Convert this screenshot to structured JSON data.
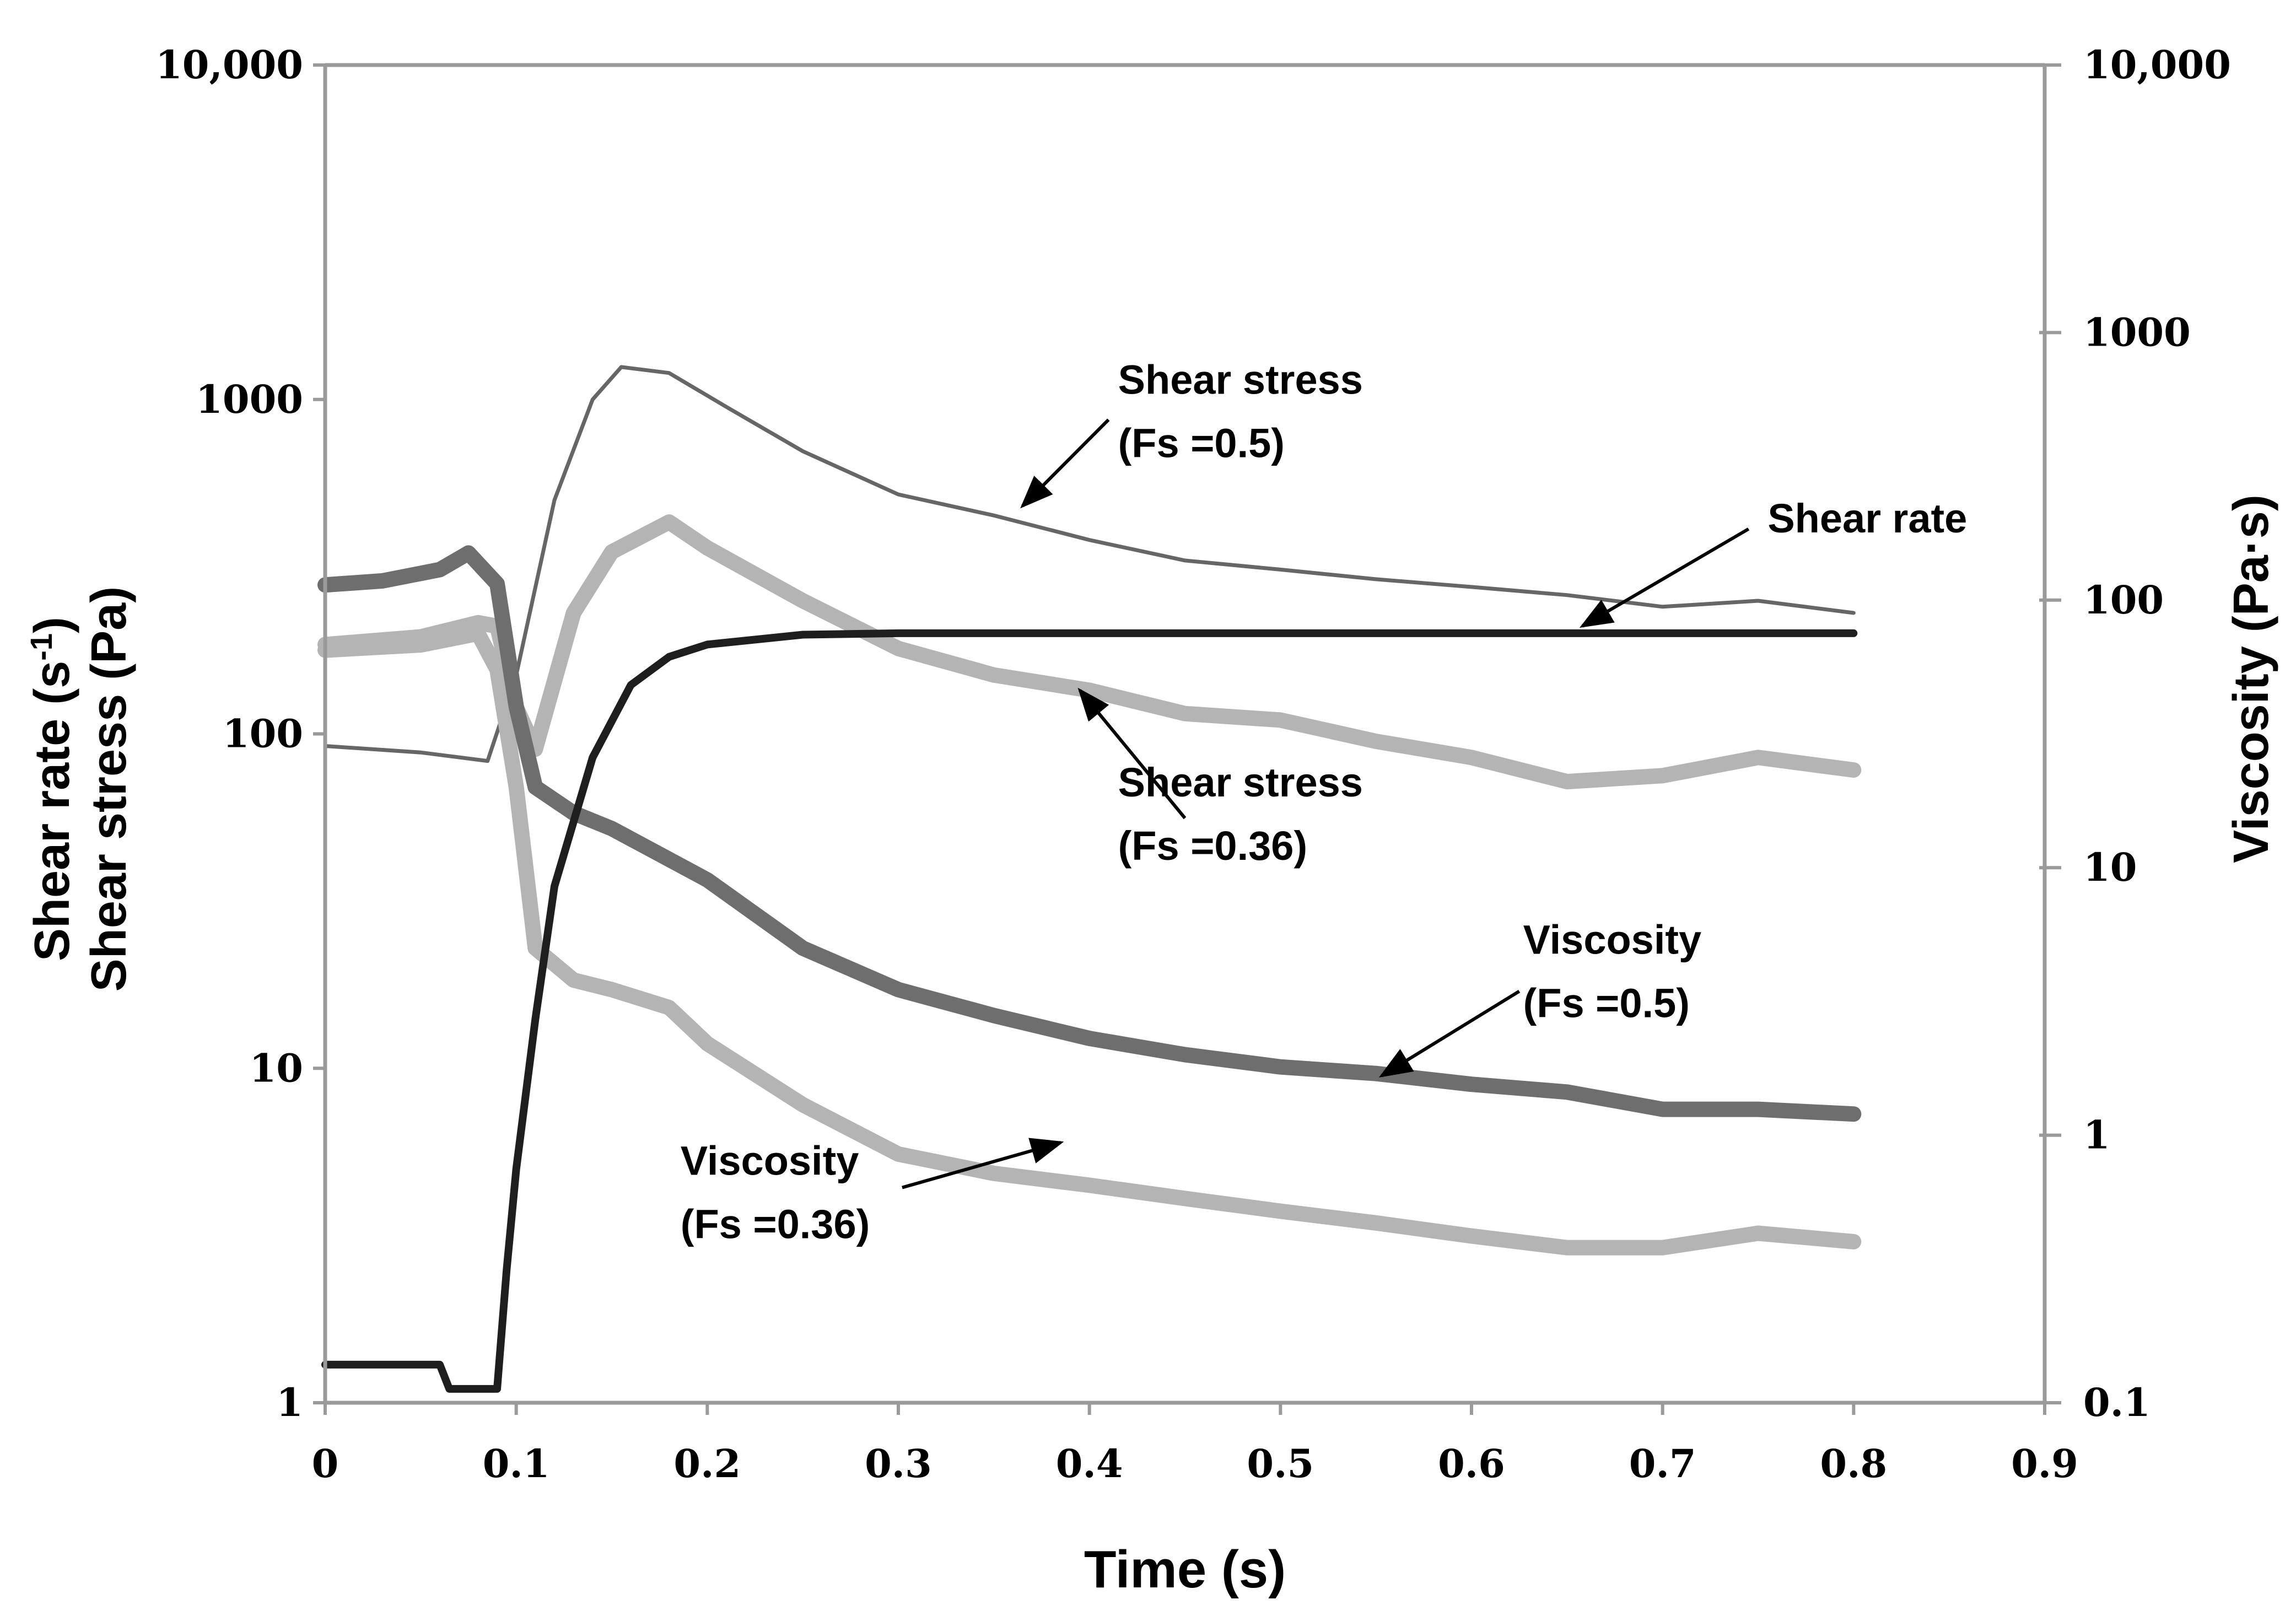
{
  "chart_data": {
    "type": "line",
    "xlabel": "Time (s)",
    "ylabel_left": [
      "Shear rate (s",
      "-1",
      ")",
      "Shear stress (Pa)"
    ],
    "ylabel_right": "Viscosity (Pa·s)",
    "x_range": [
      0,
      0.9
    ],
    "x_ticks": [
      "0",
      "0.1",
      "0.2",
      "0.3",
      "0.4",
      "0.5",
      "0.6",
      "0.7",
      "0.8",
      "0.9"
    ],
    "y_left": {
      "scale": "log",
      "range": [
        1,
        10000
      ],
      "ticks": [
        "1",
        "10",
        "100",
        "1000",
        "10,000"
      ]
    },
    "y_right": {
      "scale": "log",
      "range": [
        0.1,
        10000
      ],
      "ticks": [
        "0.1",
        "1",
        "10",
        "100",
        "1000",
        "10,000"
      ]
    },
    "series": [
      {
        "name": "Shear stress (Fs =0.5)",
        "axis": "left",
        "color": "#666666",
        "style": "thin",
        "x": [
          0,
          0.05,
          0.085,
          0.1,
          0.12,
          0.14,
          0.155,
          0.18,
          0.21,
          0.25,
          0.3,
          0.35,
          0.4,
          0.45,
          0.5,
          0.55,
          0.6,
          0.65,
          0.7,
          0.75,
          0.8
        ],
        "values": [
          92,
          88,
          83,
          150,
          500,
          1000,
          1250,
          1200,
          950,
          700,
          520,
          450,
          380,
          330,
          310,
          290,
          275,
          260,
          240,
          250,
          230
        ]
      },
      {
        "name": "Shear stress (Fs =0.36)",
        "axis": "left",
        "color": "#b4b4b4",
        "style": "thick",
        "x": [
          0,
          0.05,
          0.08,
          0.09,
          0.1,
          0.11,
          0.13,
          0.15,
          0.18,
          0.2,
          0.25,
          0.3,
          0.35,
          0.4,
          0.45,
          0.5,
          0.55,
          0.6,
          0.65,
          0.7,
          0.75,
          0.8
        ],
        "values": [
          185,
          195,
          215,
          210,
          120,
          90,
          230,
          350,
          430,
          360,
          250,
          180,
          150,
          135,
          115,
          110,
          95,
          85,
          72,
          75,
          85,
          78
        ]
      },
      {
        "name": "Shear rate",
        "axis": "left",
        "color": "#1e1e1e",
        "style": "medium",
        "x": [
          0,
          0.02,
          0.04,
          0.06,
          0.065,
          0.08,
          0.09,
          0.095,
          0.1,
          0.11,
          0.12,
          0.14,
          0.16,
          0.18,
          0.2,
          0.25,
          0.3,
          0.8
        ],
        "values": [
          1.3,
          1.3,
          1.3,
          1.3,
          1.1,
          1.1,
          1.1,
          2.5,
          5,
          14,
          35,
          85,
          140,
          170,
          185,
          198,
          200,
          200
        ]
      },
      {
        "name": "Viscosity (Fs =0.5)",
        "axis": "right",
        "color": "#6e6e6e",
        "style": "thick",
        "x": [
          0,
          0.03,
          0.06,
          0.075,
          0.09,
          0.1,
          0.11,
          0.13,
          0.15,
          0.2,
          0.25,
          0.3,
          0.35,
          0.4,
          0.45,
          0.5,
          0.55,
          0.6,
          0.65,
          0.7,
          0.75,
          0.8
        ],
        "values": [
          114,
          118,
          130,
          150,
          115,
          40,
          20,
          16,
          14,
          9,
          5,
          3.5,
          2.8,
          2.3,
          2,
          1.8,
          1.7,
          1.55,
          1.45,
          1.25,
          1.25,
          1.2
        ]
      },
      {
        "name": "Viscosity (Fs =0.36)",
        "axis": "right",
        "color": "#b4b4b4",
        "style": "thick",
        "x": [
          0,
          0.05,
          0.08,
          0.09,
          0.1,
          0.11,
          0.13,
          0.15,
          0.18,
          0.2,
          0.25,
          0.3,
          0.35,
          0.4,
          0.45,
          0.5,
          0.55,
          0.6,
          0.65,
          0.7,
          0.75,
          0.8
        ],
        "values": [
          65,
          68,
          75,
          55,
          20,
          5,
          3.8,
          3.5,
          3,
          2.2,
          1.3,
          0.85,
          0.72,
          0.65,
          0.58,
          0.52,
          0.47,
          0.42,
          0.38,
          0.38,
          0.43,
          0.4
        ]
      }
    ],
    "annotations": [
      {
        "lines": [
          "Shear stress",
          "(Fs =0.5)"
        ],
        "anchor": "start",
        "at": {
          "x": 0.415,
          "y": 1040
        },
        "arrow_from": {
          "x": 0.41,
          "y": 870
        },
        "arrow_to": {
          "x": 0.365,
          "y": 480
        }
      },
      {
        "lines": [
          "Shear rate"
        ],
        "anchor": "start",
        "at": {
          "x": 0.755,
          "y": 400
        },
        "arrow_from": {
          "x": 0.745,
          "y": 410
        },
        "arrow_to": {
          "x": 0.658,
          "y": 210
        }
      },
      {
        "lines": [
          "Shear stress",
          "(Fs =0.36)"
        ],
        "anchor": "start",
        "at": {
          "x": 0.415,
          "y": 65
        },
        "arrow_from": {
          "x": 0.45,
          "y": 56
        },
        "arrow_to": {
          "x": 0.395,
          "y": 135
        }
      },
      {
        "lines": [
          "Viscosity",
          "(Fs =0.5)"
        ],
        "anchor": "start",
        "at": {
          "x": 0.627,
          "y": 22
        },
        "arrow_from": {
          "x": 0.625,
          "y": 17
        },
        "arrow_to": {
          "x": 0.553,
          "y": 9.5
        }
      },
      {
        "lines": [
          "Viscosity",
          "(Fs =0.36)"
        ],
        "anchor": "start",
        "at": {
          "x": 0.186,
          "y": 4.8
        },
        "arrow_from": {
          "x": 0.302,
          "y": 4.4
        },
        "arrow_to": {
          "x": 0.385,
          "y": 6
        }
      }
    ]
  }
}
